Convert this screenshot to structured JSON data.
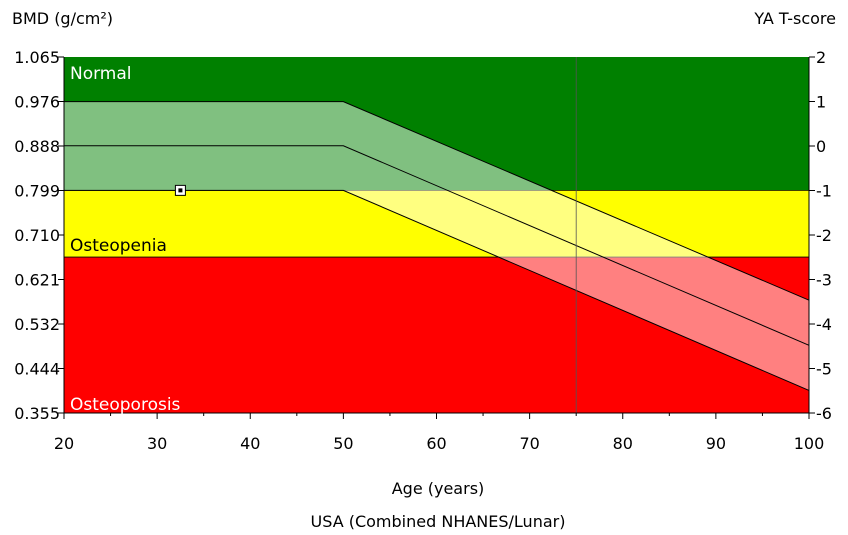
{
  "chart_data": {
    "type": "area",
    "title": "",
    "ylabel_left": "BMD (g/cm²)",
    "ylabel_right": "YA T-score",
    "xlabel": "Age (years)",
    "reference": "USA (Combined NHANES/Lunar)",
    "xlim": [
      20,
      100
    ],
    "ylim": [
      0.355,
      1.065
    ],
    "x_ticks": [
      "20",
      "30",
      "40",
      "50",
      "60",
      "70",
      "80",
      "90",
      "100"
    ],
    "y_ticks_left": [
      "1.065",
      "0.976",
      "0.888",
      "0.799",
      "0.710",
      "0.621",
      "0.532",
      "0.444",
      "0.355"
    ],
    "y_ticks_right": [
      "2",
      "1",
      "0",
      "-1",
      "-2",
      "-3",
      "-4",
      "-5",
      "-6"
    ],
    "zones": [
      {
        "name": "Normal",
        "ymin": 0.799,
        "ymax": 1.065,
        "color": "#008000"
      },
      {
        "name": "Osteopenia",
        "ymin": 0.666,
        "ymax": 0.799,
        "color": "#ffff00"
      },
      {
        "name": "Osteoporosis",
        "ymin": 0.355,
        "ymax": 0.666,
        "color": "#ff0000"
      }
    ],
    "reference_band": {
      "x": [
        20,
        50,
        100
      ],
      "upper": [
        0.976,
        0.976,
        0.58
      ],
      "mean": [
        0.888,
        0.888,
        0.49
      ],
      "lower": [
        0.799,
        0.799,
        0.4
      ]
    },
    "vertical_marker_x": 75,
    "patient_point": {
      "x": 32.5,
      "y": 0.799
    },
    "grid": false
  }
}
